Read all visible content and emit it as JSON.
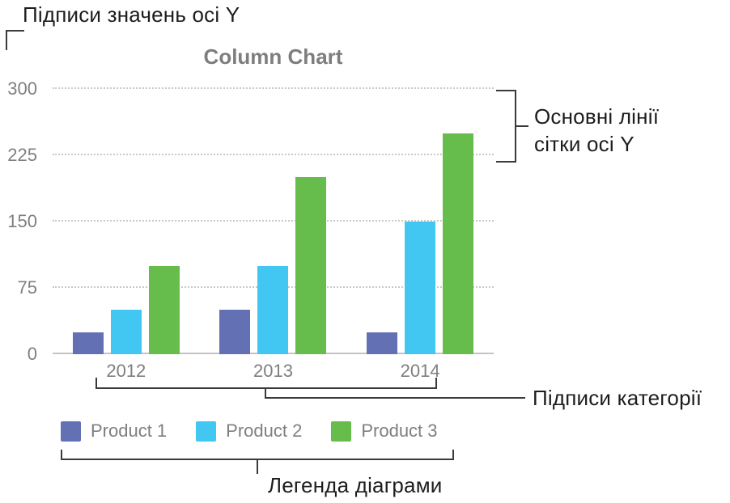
{
  "annotations": {
    "y_value_labels": "Підписи значень осі Y",
    "y_gridlines": "Основні лінії сітки осі Y",
    "category_labels": "Підписи категорії",
    "chart_legend": "Легенда діаграми"
  },
  "chart_data": {
    "type": "bar",
    "title": "Column Chart",
    "categories": [
      "2012",
      "2013",
      "2014"
    ],
    "series": [
      {
        "name": "Product 1",
        "color": "#6470b4",
        "values": [
          25,
          50,
          25
        ]
      },
      {
        "name": "Product 2",
        "color": "#42c6f2",
        "values": [
          50,
          100,
          150
        ]
      },
      {
        "name": "Product 3",
        "color": "#67bd4b",
        "values": [
          100,
          200,
          250
        ]
      }
    ],
    "ylim": [
      0,
      300
    ],
    "yticks": [
      0,
      75,
      150,
      225,
      300
    ],
    "grid": true,
    "gridline_style": "dotted",
    "legend_position": "bottom",
    "colors": {
      "axis_text": "#7f7f7f",
      "gridline": "#c9c9c9",
      "annotation_line": "#3a3a3a",
      "annotation_text": "#1d1d1f",
      "title_text": "#7e7e7e"
    }
  }
}
